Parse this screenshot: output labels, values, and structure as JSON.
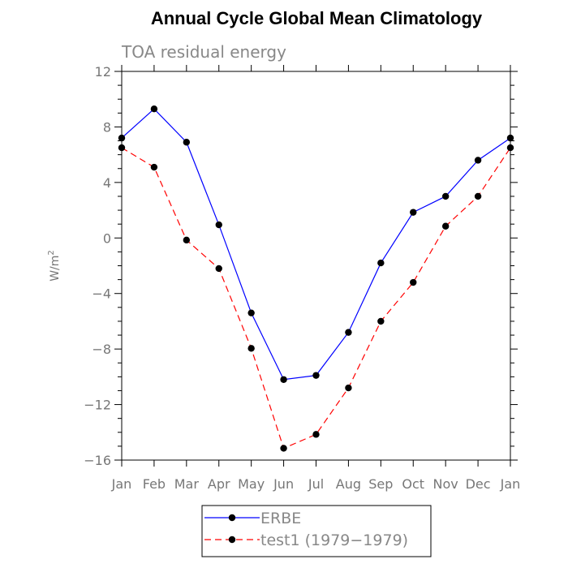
{
  "chart_data": {
    "type": "line",
    "title": "Annual Cycle Global Mean Climatology",
    "subtitle": "TOA residual energy",
    "ylabel": "W/m",
    "ylabel_superscript": "2",
    "categories": [
      "Jan",
      "Feb",
      "Mar",
      "Apr",
      "May",
      "Jun",
      "Jul",
      "Aug",
      "Sep",
      "Oct",
      "Nov",
      "Dec",
      "Jan"
    ],
    "ylim": [
      -16,
      12
    ],
    "yticks": [
      12,
      8,
      4,
      0,
      -4,
      -8,
      -12,
      -16
    ],
    "grid": false,
    "legend_position": "bottom-center",
    "series": [
      {
        "name": "ERBE",
        "color": "#0000ff",
        "dash": "solid",
        "values": [
          7.2,
          9.3,
          6.9,
          0.95,
          -5.4,
          -10.2,
          -9.9,
          -6.8,
          -1.8,
          1.85,
          3.0,
          5.6,
          7.2
        ]
      },
      {
        "name": "test1 (1979−1979)",
        "color": "#ff0000",
        "dash": "dashed",
        "values": [
          6.5,
          5.1,
          -0.15,
          -2.2,
          -7.95,
          -15.15,
          -14.15,
          -10.8,
          -6.0,
          -3.2,
          0.85,
          3.0,
          6.5
        ]
      }
    ]
  }
}
